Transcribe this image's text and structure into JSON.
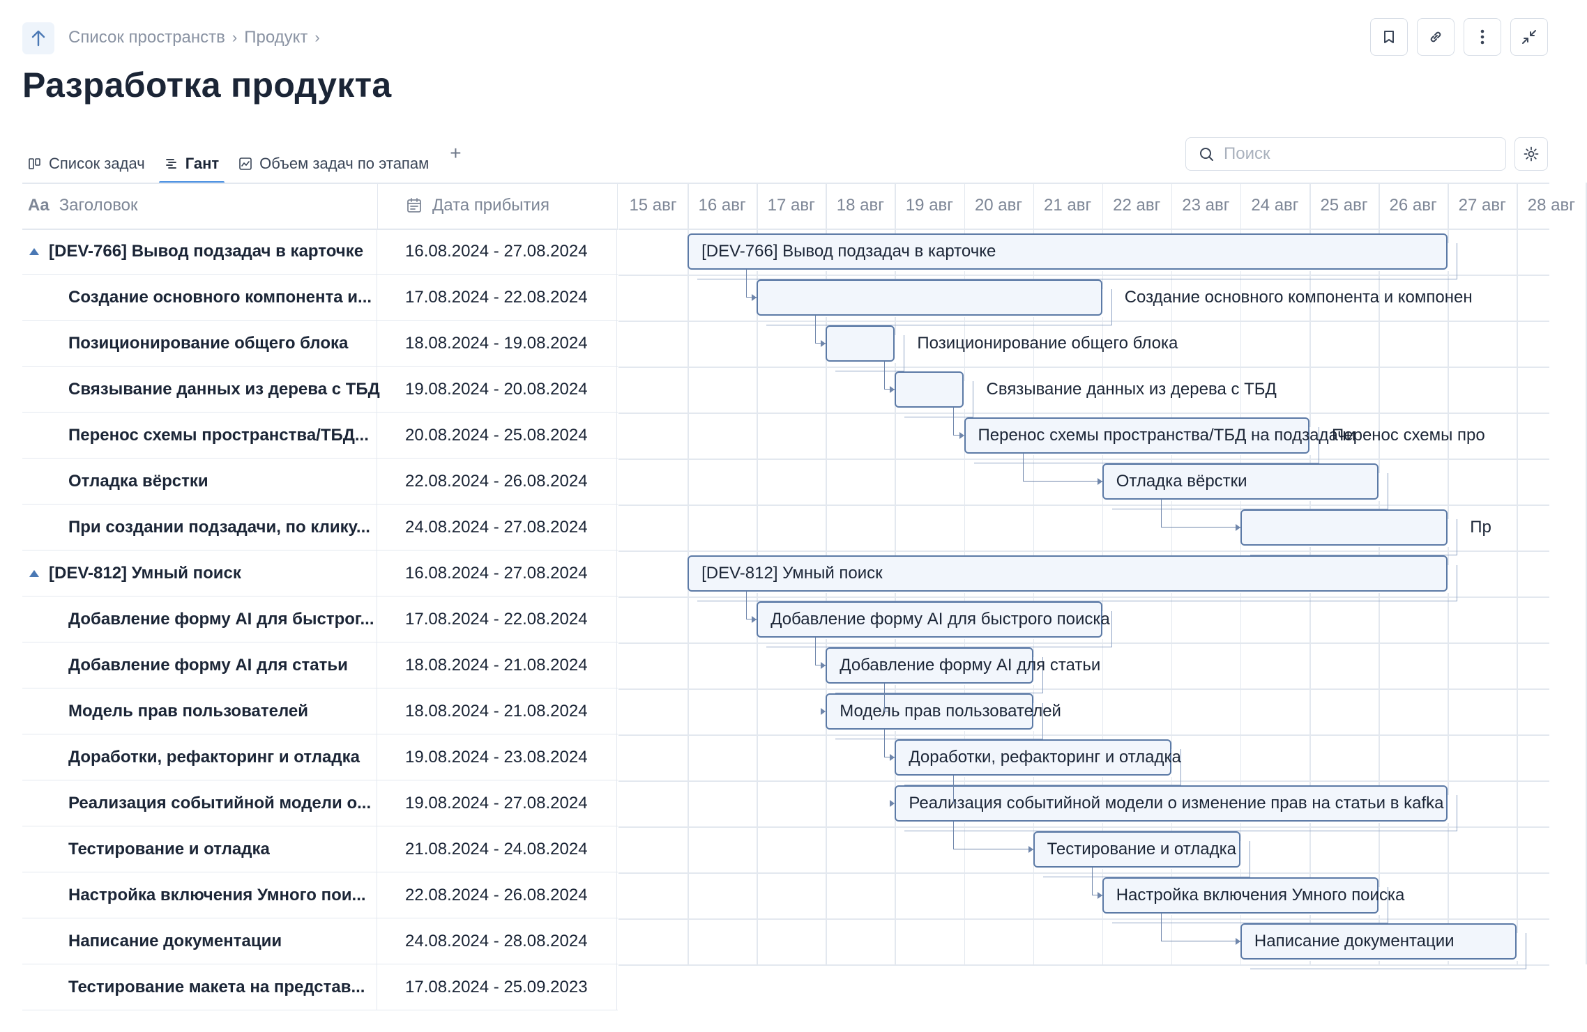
{
  "breadcrumb": {
    "items": [
      "Список пространств",
      "Продукт"
    ]
  },
  "page": {
    "title": "Разработка продукта"
  },
  "tabs": [
    {
      "label": "Список задач",
      "icon": "board-icon"
    },
    {
      "label": "Гант",
      "icon": "gantt-icon"
    },
    {
      "label": "Объем задач по этапам",
      "icon": "chart-icon"
    }
  ],
  "search": {
    "placeholder": "Поиск"
  },
  "columns": {
    "title": "Заголовок",
    "date": "Дата прибытия"
  },
  "days": [
    "15 авг",
    "16 авг",
    "17 авг",
    "18 авг",
    "19 авг",
    "20 авг",
    "21 авг",
    "22 авг",
    "23 авг",
    "24 авг",
    "25 авг",
    "26 авг",
    "27 авг",
    "28 авг"
  ],
  "rows": [
    {
      "title": "[DEV-766] Вывод подзадач в карточке",
      "dates": "16.08.2024 - 27.08.2024",
      "group": true,
      "bar_label": "[DEV-766] Вывод подзадач в карточке"
    },
    {
      "title": "Создание основного компонента и...",
      "dates": "17.08.2024 - 22.08.2024",
      "group": false,
      "bar_label": "Создание основного компонента и компонен"
    },
    {
      "title": "Позиционирование общего блока",
      "dates": "18.08.2024 - 19.08.2024",
      "group": false,
      "bar_label": "Позиционирование общего блока"
    },
    {
      "title": "Связывание данных из дерева с ТБД",
      "dates": "19.08.2024 - 20.08.2024",
      "group": false,
      "bar_label": "Связывание данных из дерева с ТБД"
    },
    {
      "title": "Перенос схемы пространства/ТБД...",
      "dates": "20.08.2024 - 25.08.2024",
      "group": false,
      "bar_label": "Перенос схемы пространства/ТБД на подзадачи",
      "extra_label": "Перенос схемы про"
    },
    {
      "title": "Отладка вёрстки",
      "dates": "22.08.2024 - 26.08.2024",
      "group": false,
      "bar_label": "Отладка вёрстки"
    },
    {
      "title": "При создании подзадачи, по клику...",
      "dates": "24.08.2024 - 27.08.2024",
      "group": false,
      "bar_label": "Пр"
    },
    {
      "title": "[DEV-812] Умный поиск",
      "dates": "16.08.2024 - 27.08.2024",
      "group": true,
      "bar_label": "[DEV-812] Умный поиск"
    },
    {
      "title": "Добавление форму AI для быстрог...",
      "dates": "17.08.2024 - 22.08.2024",
      "group": false,
      "bar_label": "Добавление форму AI для быстрого поиска"
    },
    {
      "title": "Добавление форму AI для статьи",
      "dates": "18.08.2024 - 21.08.2024",
      "group": false,
      "bar_label": "Добавление форму AI для статьи"
    },
    {
      "title": "Модель прав пользователей",
      "dates": "18.08.2024 - 21.08.2024",
      "group": false,
      "bar_label": "Модель прав пользователей"
    },
    {
      "title": "Доработки, рефакторинг и отладка",
      "dates": "19.08.2024 - 23.08.2024",
      "group": false,
      "bar_label": "Доработки, рефакторинг и отладка"
    },
    {
      "title": "Реализация событийной модели о...",
      "dates": "19.08.2024 - 27.08.2024",
      "group": false,
      "bar_label": "Реализация событийной модели о изменение прав на статьи в kafka"
    },
    {
      "title": "Тестирование и отладка",
      "dates": "21.08.2024 - 24.08.2024",
      "group": false,
      "bar_label": "Тестирование и отладка"
    },
    {
      "title": "Настройка включения Умного пои...",
      "dates": "22.08.2024 - 26.08.2024",
      "group": false,
      "bar_label": "Настройка включения Умного поиска"
    },
    {
      "title": "Написание документации",
      "dates": "24.08.2024 - 28.08.2024",
      "group": false,
      "bar_label": "Написание документации"
    },
    {
      "title": "Тестирование макета на представ...",
      "dates": "17.08.2024 - 25.09.2023",
      "group": false,
      "bar_label": ""
    }
  ],
  "colors": {
    "accent": "#4a90e2",
    "bar_border": "#5c7aa6",
    "bar_fill": "#f2f6fc",
    "grid": "#e3e8ef",
    "text": "#1b2536",
    "muted": "#7d8696"
  }
}
